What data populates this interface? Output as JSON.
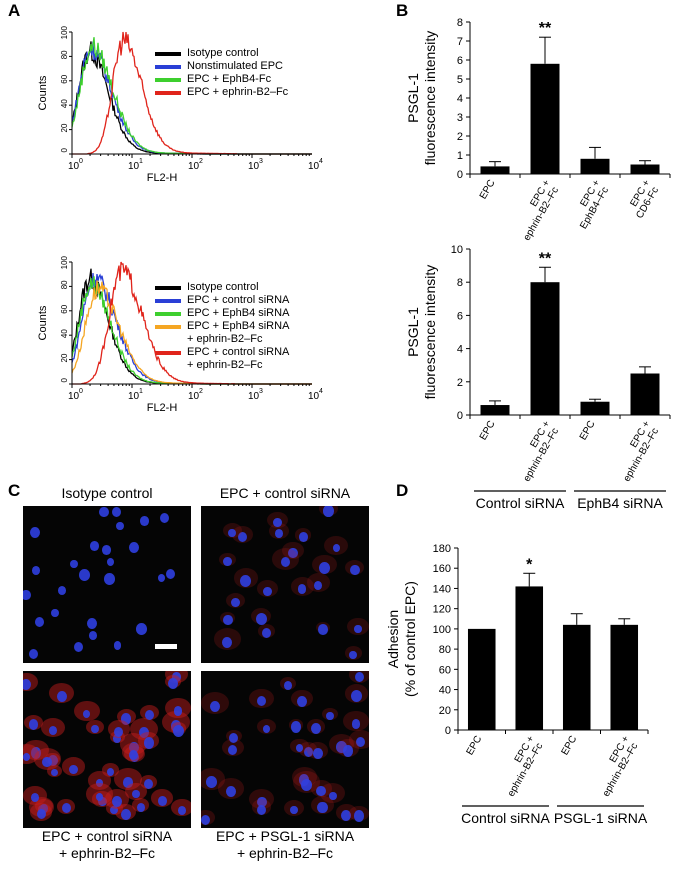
{
  "panel_labels": {
    "a": "A",
    "b": "B",
    "c": "C",
    "d": "D"
  },
  "chart_data": [
    {
      "id": "A1",
      "type": "line",
      "xlabel": "FL2-H",
      "ylabel": "Counts",
      "xscale": "log",
      "xlim": [
        1,
        10000
      ],
      "ylim": [
        0,
        100
      ],
      "x_ticks": [
        {
          "base": "10",
          "exp": "0"
        },
        {
          "base": "10",
          "exp": "1"
        },
        {
          "base": "10",
          "exp": "2"
        },
        {
          "base": "10",
          "exp": "3"
        },
        {
          "base": "10",
          "exp": "4"
        }
      ],
      "y_ticks": [
        "0",
        "20",
        "40",
        "60",
        "80",
        "100"
      ],
      "legend_position": "top-right",
      "series": [
        {
          "name": "Isotype control",
          "color": "#000000",
          "peak_x": 1.9,
          "peak_y": 82,
          "width": 0.24
        },
        {
          "name": "Nonstimulated EPC",
          "color": "#2a3fd6",
          "peak_x": 2.0,
          "peak_y": 84,
          "width": 0.26
        },
        {
          "name": "EPC + EphB4-Fc",
          "color": "#3ecf2e",
          "peak_x": 2.1,
          "peak_y": 86,
          "width": 0.26
        },
        {
          "name": "EPC + ephrin-B2–Fc",
          "color": "#e0241b",
          "peak_x": 7.0,
          "peak_y": 91,
          "width": 0.23
        }
      ]
    },
    {
      "id": "A2",
      "type": "line",
      "xlabel": "FL2-H",
      "ylabel": "Counts",
      "xscale": "log",
      "xlim": [
        1,
        10000
      ],
      "ylim": [
        0,
        100
      ],
      "x_ticks": [
        {
          "base": "10",
          "exp": "0"
        },
        {
          "base": "10",
          "exp": "1"
        },
        {
          "base": "10",
          "exp": "2"
        },
        {
          "base": "10",
          "exp": "3"
        },
        {
          "base": "10",
          "exp": "4"
        }
      ],
      "y_ticks": [
        "0",
        "20",
        "40",
        "60",
        "80",
        "100"
      ],
      "legend_position": "top-right",
      "legend": [
        {
          "lines": [
            "Isotype control"
          ],
          "color": "#000000"
        },
        {
          "lines": [
            "EPC + control siRNA"
          ],
          "color": "#2a3fd6"
        },
        {
          "lines": [
            "EPC + EphB4 siRNA"
          ],
          "color": "#3ecf2e"
        },
        {
          "lines": [
            "EPC + EphB4 siRNA",
            "+ ephrin-B2–Fc"
          ],
          "color": "#f5a623"
        },
        {
          "lines": [
            "EPC + control siRNA",
            "+ ephrin-B2–Fc"
          ],
          "color": "#e0241b"
        }
      ],
      "series": [
        {
          "name": "Isotype control",
          "color": "#000000",
          "peak_x": 1.9,
          "peak_y": 84,
          "width": 0.24
        },
        {
          "name": "EPC + control siRNA",
          "color": "#2a3fd6",
          "peak_x": 2.3,
          "peak_y": 85,
          "width": 0.27
        },
        {
          "name": "EPC + EphB4 siRNA",
          "color": "#3ecf2e",
          "peak_x": 2.0,
          "peak_y": 80,
          "width": 0.25
        },
        {
          "name": "EPC + EphB4 siRNA + ephrin-B2–Fc",
          "color": "#f5a623",
          "peak_x": 2.6,
          "peak_y": 76,
          "width": 0.27
        },
        {
          "name": "EPC + control siRNA + ephrin-B2–Fc",
          "color": "#e0241b",
          "peak_x": 6.5,
          "peak_y": 91,
          "width": 0.26
        }
      ]
    },
    {
      "id": "B1",
      "type": "bar",
      "ylabel_lines": [
        "PSGL-1",
        "fluorescence intensity"
      ],
      "ylim": [
        0,
        8
      ],
      "y_ticks": [
        "0",
        "1",
        "2",
        "3",
        "4",
        "5",
        "6",
        "7",
        "8"
      ],
      "categories": [
        {
          "lines": [
            "EPC"
          ]
        },
        {
          "lines": [
            "EPC +",
            "ephrin-B2–Fc"
          ]
        },
        {
          "lines": [
            "EPC +",
            "EphB4–Fc"
          ]
        },
        {
          "lines": [
            "EPC +",
            "CD6-Fc"
          ]
        }
      ],
      "values": [
        0.4,
        5.8,
        0.8,
        0.5
      ],
      "errors": [
        0.25,
        1.4,
        0.6,
        0.2
      ],
      "significance": [
        "",
        "**",
        "",
        ""
      ]
    },
    {
      "id": "B2",
      "type": "bar",
      "ylabel_lines": [
        "PSGL-1",
        "fluorescence intensity"
      ],
      "ylim": [
        0,
        10
      ],
      "y_ticks": [
        "0",
        "2",
        "4",
        "6",
        "8",
        "10"
      ],
      "categories": [
        {
          "lines": [
            "EPC"
          ]
        },
        {
          "lines": [
            "EPC +",
            "ephrin-B2–Fc"
          ]
        },
        {
          "lines": [
            "EPC"
          ]
        },
        {
          "lines": [
            "EPC +",
            "ephrin-B2–Fc"
          ]
        }
      ],
      "values": [
        0.6,
        8.0,
        0.8,
        2.5
      ],
      "errors": [
        0.25,
        0.9,
        0.15,
        0.4
      ],
      "significance": [
        "",
        "**",
        "",
        ""
      ],
      "groups": [
        "Control siRNA",
        "EphB4 siRNA"
      ]
    },
    {
      "id": "D",
      "type": "bar",
      "ylabel_lines": [
        "Adhesion",
        "(% of control EPC)"
      ],
      "ylim": [
        0,
        180
      ],
      "y_ticks": [
        "0",
        "20",
        "40",
        "60",
        "80",
        "100",
        "120",
        "140",
        "160",
        "180"
      ],
      "categories": [
        {
          "lines": [
            "EPC"
          ]
        },
        {
          "lines": [
            "EPC +",
            "ephrin-B2–Fc"
          ]
        },
        {
          "lines": [
            "EPC"
          ]
        },
        {
          "lines": [
            "EPC +",
            "ephrin-B2–Fc"
          ]
        }
      ],
      "values": [
        100,
        142,
        104,
        104
      ],
      "errors": [
        0,
        13,
        11,
        6
      ],
      "significance": [
        "",
        "*",
        "",
        ""
      ],
      "groups": [
        "Control siRNA",
        "PSGL-1 siRNA"
      ]
    }
  ],
  "micrographs": [
    {
      "label_lines": [
        "Isotype control"
      ],
      "density": 26,
      "red": 0.05
    },
    {
      "label_lines": [
        "EPC + control siRNA"
      ],
      "density": 24,
      "red": 0.35
    },
    {
      "label_lines": [
        "EPC + control siRNA",
        "+ ephrin-B2–Fc"
      ],
      "density": 44,
      "red": 0.85
    },
    {
      "label_lines": [
        "EPC + PSGL-1 siRNA",
        "+ ephrin-B2–Fc"
      ],
      "density": 32,
      "red": 0.4
    }
  ],
  "colors": {
    "bar": "#000000",
    "nucleus": "#2f3fe0",
    "cytoplasm": "#c81e1e"
  }
}
